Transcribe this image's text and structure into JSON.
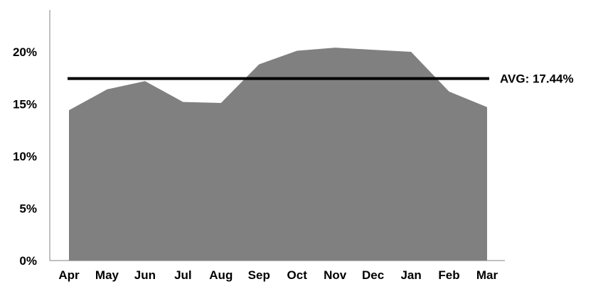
{
  "chart_data": {
    "type": "area",
    "categories": [
      "Apr",
      "May",
      "Jun",
      "Jul",
      "Aug",
      "Sep",
      "Oct",
      "Nov",
      "Dec",
      "Jan",
      "Feb",
      "Mar"
    ],
    "series": [
      {
        "values": [
          14.4,
          16.4,
          17.2,
          15.2,
          15.1,
          18.8,
          20.1,
          20.4,
          20.2,
          20.0,
          16.2,
          14.7
        ],
        "color": "#808080"
      }
    ],
    "reference_line": {
      "value": 17.44,
      "label": "AVG: 17.44%",
      "color": "#000000"
    },
    "y_ticks": [
      "0%",
      "5%",
      "10%",
      "15%",
      "20%"
    ],
    "y_tick_values": [
      0,
      5,
      10,
      15,
      20
    ],
    "ylim": [
      0,
      24
    ],
    "title": "",
    "xlabel": "",
    "ylabel": "",
    "grid": false,
    "legend": "none"
  }
}
